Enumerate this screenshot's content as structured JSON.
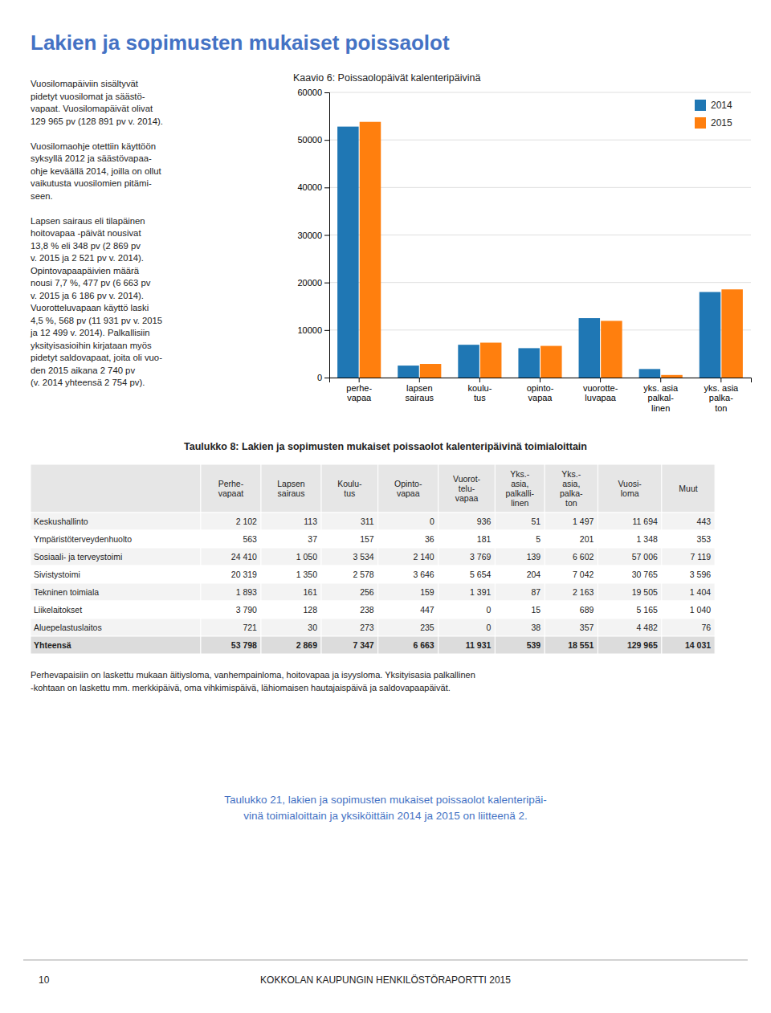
{
  "title": "Lakien ja sopimusten mukaiset poissaolot",
  "left_text": [
    [
      "Vuosilomapäiviin sisältyvät",
      "pidetyt vuosilomat ja säästö-",
      "vapaat. Vuosilomapäivät olivat",
      "129 965 pv (128 891 pv v. 2014)."
    ],
    [
      "Vuosilomaohje otettiin käyttöön",
      "syksyllä 2012 ja säästövapaa-",
      "ohje keväällä 2014, joilla on ollut",
      "vaikutusta vuosilomien pitämi-",
      "seen."
    ],
    [
      "Lapsen sairaus eli tilapäinen",
      "hoitovapaa -päivät nousivat",
      "13,8 % eli 348 pv (2 869 pv",
      "v. 2015 ja 2 521 pv v. 2014).",
      "Opintovapaapäivien määrä",
      "nousi 7,7 %, 477 pv (6 663 pv",
      "v. 2015 ja 6 186 pv v. 2014).",
      "Vuorotteluvapaan käyttö laski",
      "4,5 %, 568 pv (11 931 pv v. 2015",
      "ja 12 499 v. 2014). Palkallisiin",
      "yksityisasioihin kirjataan myös",
      "pidetyt saldovapaat, joita oli vuo-",
      "den 2015 aikana 2 740 pv",
      "(v. 2014 yhteensä 2 754 pv)."
    ]
  ],
  "chart_data": {
    "type": "bar",
    "title": "Kaavio 6: Poissaolopäivät kalenteripäivinä",
    "categories": [
      "perhe-\nvapaa",
      "lapsen\nsairaus",
      "koulu-\ntus",
      "opinto-\nvapaa",
      "vuorotte-\nluvapaa",
      "yks. asia\npalkal-\nlinen",
      "yks. asia\npalka-\nton"
    ],
    "series": [
      {
        "name": "2014",
        "values": [
          52800,
          2521,
          6900,
          6186,
          12499,
          1800,
          18000
        ]
      },
      {
        "name": "2015",
        "values": [
          53798,
          2869,
          7347,
          6663,
          11931,
          539,
          18551
        ]
      }
    ],
    "ylim": [
      0,
      60000
    ],
    "yticks": [
      0,
      10000,
      20000,
      30000,
      40000,
      50000,
      60000
    ],
    "grid": true,
    "legend": "upper right"
  },
  "table": {
    "title": "Taulukko 8: Lakien ja sopimusten mukaiset poissaolot kalenteripäivinä toimialoittain",
    "headers": [
      "Perhe-\nvapaat",
      "Lapsen\nsairaus",
      "Koulu-\ntus",
      "Opinto-\nvapaa",
      "Vuorot-\ntelu-\nvapaa",
      "Yks.-\nasia,\npalkalli-\nlinen",
      "Yks.-\nasia,\npalka-\nton",
      "Vuosi-\nloma",
      "Muut"
    ],
    "rows": [
      [
        "Keskushallinto",
        "2 102",
        "113",
        "311",
        "0",
        "936",
        "51",
        "1 497",
        "11 694",
        "443"
      ],
      [
        "Ympäristöterveydenhuolto",
        "563",
        "37",
        "157",
        "36",
        "181",
        "5",
        "201",
        "1 348",
        "353"
      ],
      [
        "Sosiaali- ja terveystoimi",
        "24 410",
        "1 050",
        "3 534",
        "2 140",
        "3 769",
        "139",
        "6 602",
        "57 006",
        "7 119"
      ],
      [
        "Sivistystoimi",
        "20 319",
        "1 350",
        "2 578",
        "3 646",
        "5 654",
        "204",
        "7 042",
        "30 765",
        "3 596"
      ],
      [
        "Tekninen toimiala",
        "1 893",
        "161",
        "256",
        "159",
        "1 391",
        "87",
        "2 163",
        "19 505",
        "1 404"
      ],
      [
        "Liikelaitokset",
        "3 790",
        "128",
        "238",
        "447",
        "0",
        "15",
        "689",
        "5 165",
        "1 040"
      ],
      [
        "Aluepelastuslaitos",
        "721",
        "30",
        "273",
        "235",
        "0",
        "38",
        "357",
        "4 482",
        "76"
      ]
    ],
    "total_row": [
      "Yhteensä",
      "53 798",
      "2 869",
      "7 347",
      "6 663",
      "11 931",
      "539",
      "18 551",
      "129 965",
      "14 031"
    ]
  },
  "footnotes": [
    "Perhevapaisiin on laskettu mukaan äitiysloma, vanhempainloma, hoitovapaa ja isyysloma. Yksityisasia palkallinen",
    "-kohtaan on laskettu mm. merkkipäivä, oma vihkimispäivä, lähiomaisen hautajaispäivä ja saldovapaapäivät."
  ],
  "bottom_text": "Taulukko 21, lakien ja sopimusten mukaiset poissaolot kalenteripäi-\nvinä toimialoittain ja yksiköittäin 2014 ja 2015 on liitteenä 2.",
  "page_number": "10",
  "page_footer": "KOKKOLAN KAUPUNGIN HENKILÖSTÖRAPORTTI 2015"
}
